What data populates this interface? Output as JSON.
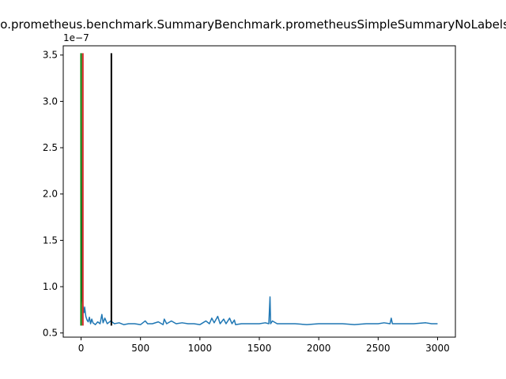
{
  "chart_data": {
    "type": "line",
    "title": "io.prometheus.benchmark.SummaryBenchmark.prometheusSimpleSummaryNoLabels",
    "xlabel": "",
    "ylabel": "",
    "y_offset_label": "1e−7",
    "xlim": [
      -150,
      3150
    ],
    "ylim": [
      0.455,
      3.6
    ],
    "x_ticks": [
      0,
      500,
      1000,
      1500,
      2000,
      2500,
      3000
    ],
    "x_tick_labels": [
      "0",
      "500",
      "1000",
      "1500",
      "2000",
      "2500",
      "3000"
    ],
    "y_ticks": [
      0.5,
      1.0,
      1.5,
      2.0,
      2.5,
      3.0,
      3.5
    ],
    "y_tick_labels": [
      "0.5",
      "1.0",
      "1.5",
      "2.0",
      "2.5",
      "3.0",
      "3.5"
    ],
    "grid": false,
    "series": [
      {
        "color": "#1f77b4",
        "points": [
          [
            0,
            3.5
          ],
          [
            3,
            2.2
          ],
          [
            6,
            1.2
          ],
          [
            9,
            0.95
          ],
          [
            12,
            0.85
          ],
          [
            15,
            0.8
          ],
          [
            20,
            0.75
          ],
          [
            25,
            0.72
          ],
          [
            30,
            0.78
          ],
          [
            40,
            0.68
          ],
          [
            50,
            0.64
          ],
          [
            60,
            0.62
          ],
          [
            70,
            0.67
          ],
          [
            80,
            0.6
          ],
          [
            90,
            0.65
          ],
          [
            100,
            0.61
          ],
          [
            120,
            0.59
          ],
          [
            140,
            0.62
          ],
          [
            160,
            0.6
          ],
          [
            175,
            0.7
          ],
          [
            185,
            0.61
          ],
          [
            200,
            0.66
          ],
          [
            220,
            0.6
          ],
          [
            250,
            0.63
          ],
          [
            280,
            0.6
          ],
          [
            320,
            0.61
          ],
          [
            360,
            0.59
          ],
          [
            400,
            0.6
          ],
          [
            450,
            0.6
          ],
          [
            500,
            0.59
          ],
          [
            540,
            0.63
          ],
          [
            560,
            0.6
          ],
          [
            600,
            0.6
          ],
          [
            650,
            0.62
          ],
          [
            690,
            0.59
          ],
          [
            700,
            0.65
          ],
          [
            720,
            0.6
          ],
          [
            760,
            0.63
          ],
          [
            800,
            0.6
          ],
          [
            850,
            0.61
          ],
          [
            900,
            0.6
          ],
          [
            950,
            0.6
          ],
          [
            1000,
            0.59
          ],
          [
            1050,
            0.63
          ],
          [
            1080,
            0.6
          ],
          [
            1100,
            0.66
          ],
          [
            1120,
            0.61
          ],
          [
            1150,
            0.68
          ],
          [
            1170,
            0.6
          ],
          [
            1200,
            0.65
          ],
          [
            1220,
            0.6
          ],
          [
            1250,
            0.66
          ],
          [
            1270,
            0.6
          ],
          [
            1290,
            0.64
          ],
          [
            1300,
            0.59
          ],
          [
            1350,
            0.6
          ],
          [
            1400,
            0.6
          ],
          [
            1450,
            0.6
          ],
          [
            1500,
            0.6
          ],
          [
            1550,
            0.61
          ],
          [
            1580,
            0.6
          ],
          [
            1590,
            0.89
          ],
          [
            1595,
            0.6
          ],
          [
            1610,
            0.63
          ],
          [
            1650,
            0.6
          ],
          [
            1700,
            0.6
          ],
          [
            1800,
            0.6
          ],
          [
            1900,
            0.59
          ],
          [
            2000,
            0.6
          ],
          [
            2100,
            0.6
          ],
          [
            2200,
            0.6
          ],
          [
            2300,
            0.59
          ],
          [
            2400,
            0.6
          ],
          [
            2500,
            0.6
          ],
          [
            2550,
            0.61
          ],
          [
            2600,
            0.6
          ],
          [
            2610,
            0.66
          ],
          [
            2620,
            0.6
          ],
          [
            2700,
            0.6
          ],
          [
            2800,
            0.6
          ],
          [
            2900,
            0.61
          ],
          [
            2950,
            0.6
          ],
          [
            3000,
            0.6
          ]
        ]
      }
    ],
    "vertical_lines": [
      {
        "x": 0,
        "y": [
          0.58,
          3.52
        ],
        "color": "#008000"
      },
      {
        "x": 15,
        "y": [
          0.58,
          3.52
        ],
        "color": "#d62728"
      },
      {
        "x": 255,
        "y": [
          0.58,
          3.52
        ],
        "color": "#000000"
      }
    ]
  }
}
